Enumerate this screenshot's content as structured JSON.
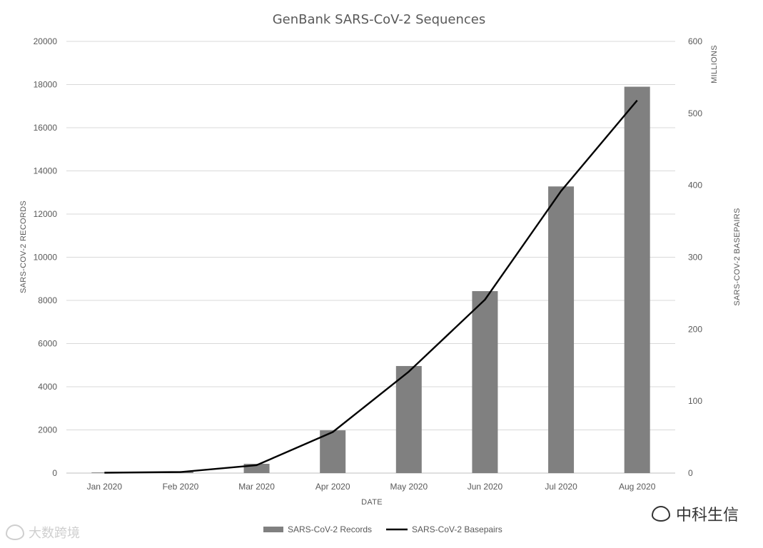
{
  "chart_data": {
    "type": "bar",
    "title": "GenBank SARS-CoV-2 Sequences",
    "xlabel": "DATE",
    "ylabel": "SARS-COV-2 RECORDS",
    "y2label": "SARS-COV-2 BASEPAIRS",
    "y2unit": "MILLIONS",
    "categories": [
      "Jan 2020",
      "Feb 2020",
      "Mar 2020",
      "Apr 2020",
      "May 2020",
      "Jun 2020",
      "Jul 2020",
      "Aug 2020"
    ],
    "ylim": [
      0,
      20000
    ],
    "yticks": [
      0,
      2000,
      4000,
      6000,
      8000,
      10000,
      12000,
      14000,
      16000,
      18000,
      20000
    ],
    "y2lim": [
      0,
      600
    ],
    "y2ticks": [
      0,
      100,
      200,
      300,
      400,
      500,
      600
    ],
    "grid": true,
    "legend_position": "bottom",
    "series": [
      {
        "name": "SARS-CoV-2 Records",
        "kind": "bar",
        "axis": "left",
        "color": "#808080",
        "values": [
          30,
          60,
          430,
          1980,
          4960,
          8430,
          13280,
          17900
        ]
      },
      {
        "name": "SARS-CoV-2 Basepairs",
        "kind": "line",
        "axis": "right",
        "color": "#000000",
        "values": [
          0.5,
          1.5,
          11,
          57,
          141,
          241,
          392,
          518
        ]
      }
    ]
  },
  "watermarks": {
    "right_text": "中科生信",
    "left_text": "大数跨境"
  }
}
